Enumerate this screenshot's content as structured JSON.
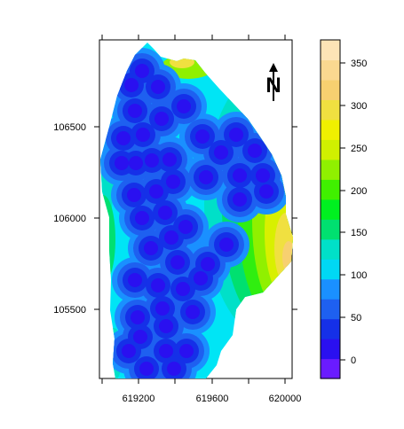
{
  "map": {
    "x_ticks": [
      "619200",
      "619600",
      "620000"
    ],
    "y_ticks": [
      "106500",
      "106000",
      "105500"
    ],
    "north_label": "N"
  },
  "legend": {
    "labels": [
      "0",
      "50",
      "100",
      "150",
      "200",
      "250",
      "300",
      "350"
    ],
    "colors": [
      "#6a1bff",
      "#2a10f0",
      "#1530e8",
      "#1e60f0",
      "#1a90ff",
      "#00d8f4",
      "#00e0c8",
      "#00e070",
      "#00f020",
      "#40f000",
      "#90f000",
      "#d0f000",
      "#f0f000",
      "#f0e040",
      "#f7d070",
      "#fad890",
      "#fde4b6"
    ]
  },
  "surface": {
    "field_color": "#00e5f5",
    "outer_band_colors": [
      "#00e0c8",
      "#00e070",
      "#30ee10",
      "#90f000",
      "#d8f000",
      "#f0e040",
      "#f7d070"
    ],
    "hotspot_levels": [
      "#1a90ff",
      "#1e60f0",
      "#1530e8",
      "#2a10f0"
    ]
  }
}
